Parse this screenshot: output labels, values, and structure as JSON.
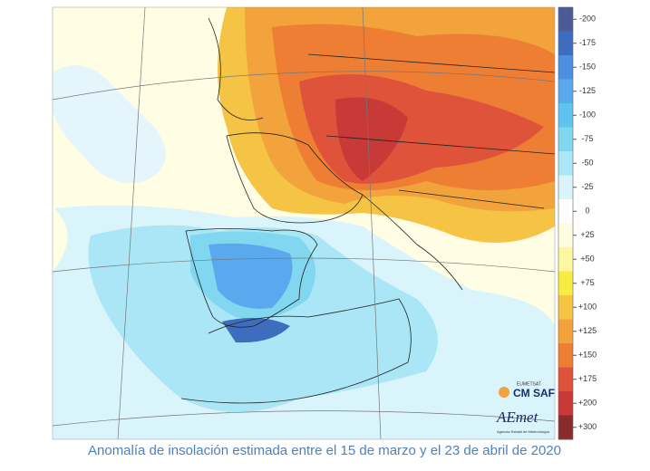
{
  "legend": {
    "items": [
      {
        "label": "-200",
        "color": "#4c5b98"
      },
      {
        "label": "-175",
        "color": "#3e6cbf"
      },
      {
        "label": "-150",
        "color": "#4a8fe0"
      },
      {
        "label": "-125",
        "color": "#5aa9ef"
      },
      {
        "label": "-100",
        "color": "#5ec4ef"
      },
      {
        "label": "-75",
        "color": "#82d7f0"
      },
      {
        "label": "-50",
        "color": "#aae6f5"
      },
      {
        "label": "-25",
        "color": "#d9f4fa"
      },
      {
        "label": "0",
        "color": "#ffffff"
      },
      {
        "label": "+25",
        "color": "#fffde0"
      },
      {
        "label": "+50",
        "color": "#fff7a0"
      },
      {
        "label": "+75",
        "color": "#f7ec42"
      },
      {
        "label": "+100",
        "color": "#f5c444"
      },
      {
        "label": "+125",
        "color": "#f2a33b"
      },
      {
        "label": "+150",
        "color": "#ee7e33"
      },
      {
        "label": "+175",
        "color": "#df533b"
      },
      {
        "label": "+200",
        "color": "#c83a38"
      },
      {
        "label": "+300",
        "color": "#8b2c2c"
      }
    ]
  },
  "logos": {
    "cmsaf_small": "EUMETSAT",
    "cmsaf": "CM SAF",
    "aemet": "AEmet",
    "aemet_sub": "Agencia Estatal de Meteorología"
  },
  "caption": "Anomalía de insolación estimada entre el 15 de marzo y el 23 de abril de 2020"
}
